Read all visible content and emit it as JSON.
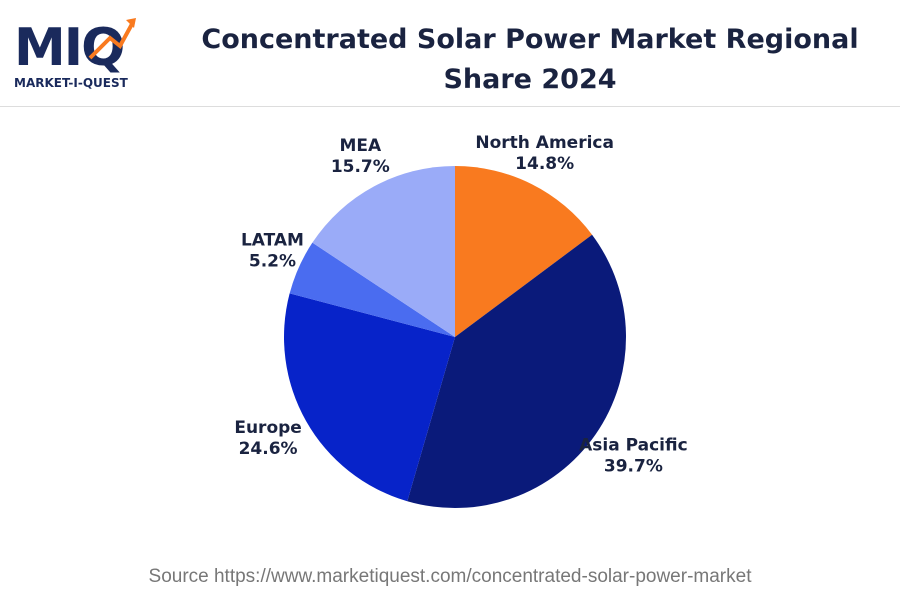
{
  "logo": {
    "mark": "MIQ",
    "name": "MARKET-I-QUEST"
  },
  "chart_data": {
    "type": "pie",
    "title": "Concentrated Solar Power Market Regional Share 2024",
    "categories": [
      "North America",
      "Asia Pacific",
      "Europe",
      "LATAM",
      "MEA"
    ],
    "values": [
      14.8,
      39.7,
      24.6,
      5.2,
      15.7
    ],
    "value_labels": [
      "14.8%",
      "39.7%",
      "24.6%",
      "5.2%",
      "15.7%"
    ],
    "colors": [
      "#f97a1f",
      "#0a1a7a",
      "#0723c9",
      "#4a6cf0",
      "#9aabf8"
    ],
    "source": "Source https://www.marketiquest.com/concentrated-solar-power-market"
  }
}
